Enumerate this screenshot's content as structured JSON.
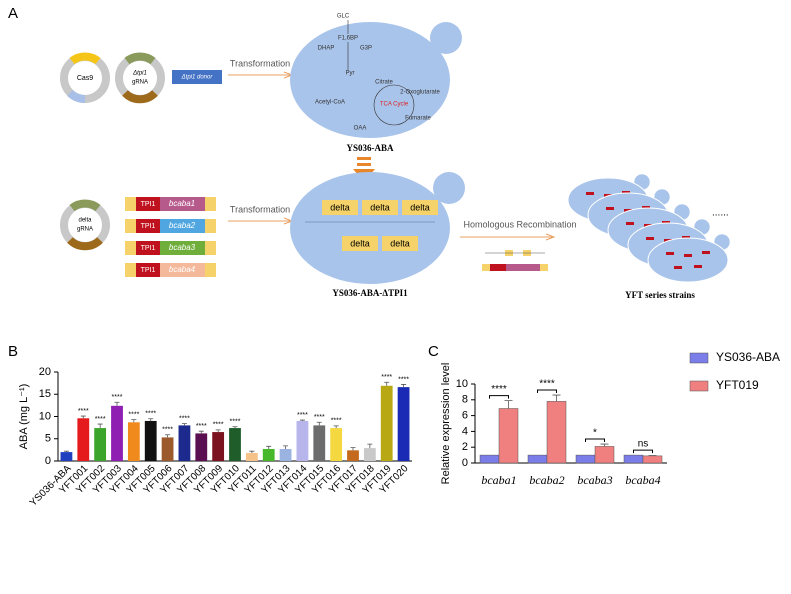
{
  "panel_labels": [
    "A",
    "B",
    "C"
  ],
  "diagram": {
    "cas9": "Cas9",
    "tpi1_grna": [
      "Δtpi1",
      "gRNA"
    ],
    "donor": "Δtpi1 donor",
    "transformation_1": "Transformation",
    "strain_1": "YS036-ABA",
    "metabolites": [
      "GLC",
      "F1,6BP",
      "DHAP",
      "G3P",
      "Pyr",
      "Acetyl-CoA",
      "Citrate",
      "2-Oxoglutarate",
      "TCA Cycle",
      "Fumarate",
      "OAA"
    ],
    "delta_grna": [
      "delta",
      "gRNA"
    ],
    "promoter": "TPI1",
    "genes": [
      "bcaba1",
      "bcaba2",
      "bcaba3",
      "bcaba4"
    ],
    "transformation_2": "Transformation",
    "delta_site": "delta",
    "recombination": "Homologous Recombination",
    "strain_2": "YS036-ABA-ΔTPI1",
    "series_strains": "YFT series strains",
    "ellipsis": "......"
  },
  "chart_data": [
    {
      "type": "bar",
      "y_label": "ABA (mg L⁻¹)",
      "categories": [
        "YS036-ABA",
        "YFT001",
        "YFT002",
        "YFT003",
        "YFT004",
        "YFT005",
        "YFT006",
        "YFT007",
        "YFT008",
        "YFT009",
        "YFT010",
        "YFT011",
        "YFT012",
        "YFT013",
        "YFT014",
        "YFT015",
        "YFT016",
        "YFT017",
        "YFT018",
        "YFT019",
        "YFT020"
      ],
      "values": [
        2.0,
        9.6,
        7.4,
        12.4,
        8.7,
        9.0,
        5.3,
        8.0,
        6.2,
        6.5,
        7.4,
        1.8,
        2.7,
        2.7,
        9.0,
        8.0,
        7.4,
        2.4,
        2.9,
        16.9,
        16.6
      ],
      "errors": [
        0.2,
        0.5,
        0.9,
        0.8,
        0.6,
        0.5,
        0.6,
        0.4,
        0.5,
        0.5,
        0.3,
        0.4,
        0.6,
        0.7,
        0.2,
        0.7,
        0.5,
        0.6,
        0.9,
        0.8,
        0.6
      ],
      "colors": [
        "#1f3fbf",
        "#e41a1c",
        "#3aa52a",
        "#8e1fb2",
        "#f08a1c",
        "#111111",
        "#9c5a2c",
        "#1b2a8c",
        "#5a1050",
        "#7a1220",
        "#1f5e2a",
        "#f5c28a",
        "#46b82a",
        "#9ab3e0",
        "#b7b5ec",
        "#6c6c6c",
        "#f5d840",
        "#c46a1e",
        "#c9c9c9",
        "#b8a814",
        "#1a2ab5"
      ],
      "significance": [
        null,
        "****",
        "****",
        "****",
        "****",
        "****",
        "****",
        "****",
        "****",
        "****",
        "****",
        null,
        null,
        null,
        "****",
        "****",
        "****",
        null,
        null,
        "****",
        "****"
      ],
      "ylim": [
        0,
        20
      ],
      "yticks": [
        0,
        5,
        10,
        15,
        20
      ]
    },
    {
      "type": "grouped_bar",
      "y_label": "Relative expression level",
      "categories": [
        "bcaba1",
        "bcaba2",
        "bcaba3",
        "bcaba4"
      ],
      "series": [
        {
          "name": "YS036-ABA",
          "color": "#7b7de8",
          "values": [
            1,
            1,
            1,
            1
          ],
          "errors": [
            0,
            0,
            0,
            0
          ]
        },
        {
          "name": "YFT019",
          "color": "#f08080",
          "values": [
            6.9,
            7.8,
            2.1,
            0.9
          ],
          "errors": [
            1.0,
            0.8,
            0.3,
            0.05
          ]
        }
      ],
      "significance": [
        "****",
        "****",
        "*",
        "ns"
      ],
      "ylim": [
        0,
        10
      ],
      "yticks": [
        0,
        2,
        4,
        6,
        8,
        10
      ],
      "legend": "right"
    }
  ]
}
